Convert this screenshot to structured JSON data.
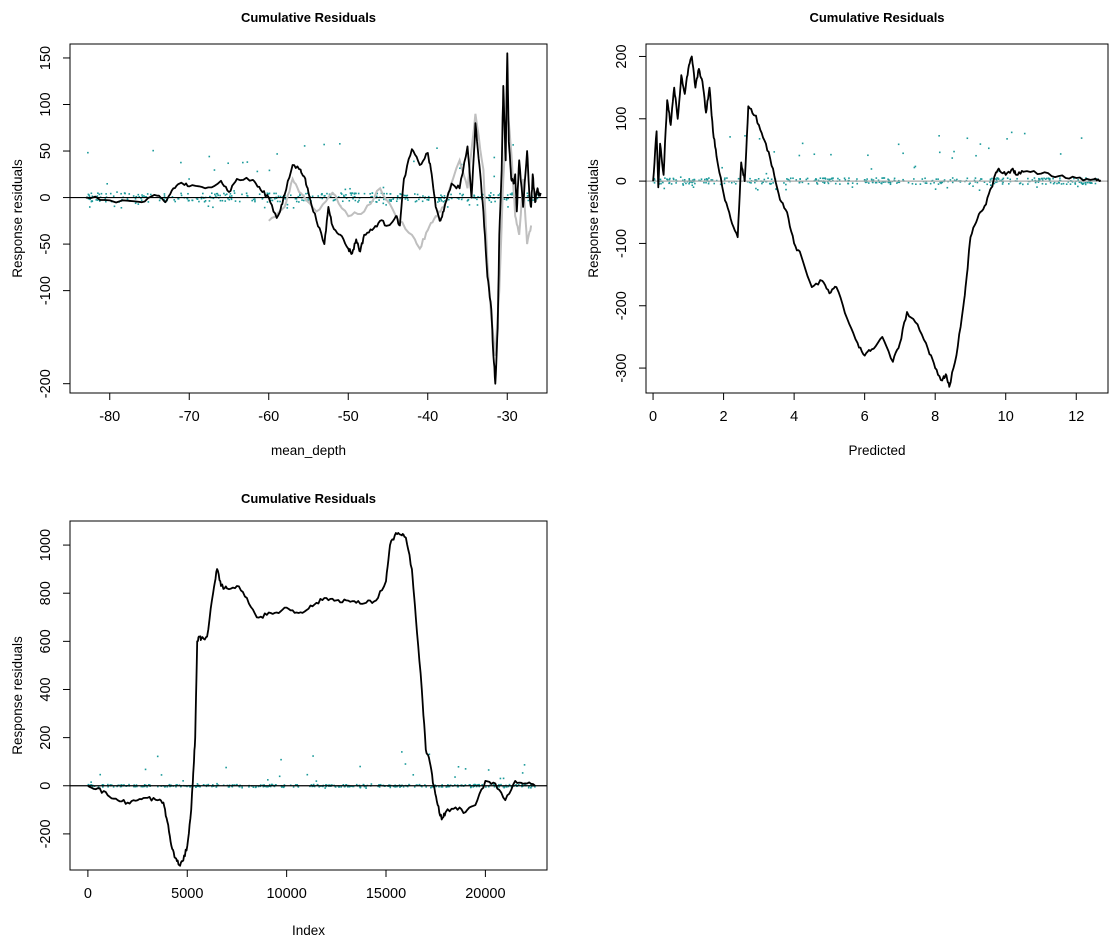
{
  "colors": {
    "main_line": "#000000",
    "band_line": "#bfbfbf",
    "points": "#1a9a9a",
    "zero_line": "#000000",
    "zero_line_alt": "#a8a8a8"
  },
  "chart_data": [
    {
      "type": "line",
      "title": "Cumulative Residuals",
      "xlabel": "mean_depth",
      "ylabel": "Response residuals",
      "xlim": [
        -85,
        -25
      ],
      "ylim": [
        -210,
        165
      ],
      "xticks": [
        -80,
        -70,
        -60,
        -50,
        -40,
        -30
      ],
      "yticks": [
        -200,
        -100,
        -50,
        0,
        50,
        100,
        150
      ],
      "zero_line": true,
      "series": [
        {
          "role": "cumulative",
          "x": [
            -83,
            -80,
            -76,
            -74,
            -73,
            -72,
            -71,
            -70,
            -68,
            -66,
            -65,
            -64,
            -62,
            -61,
            -60,
            -59,
            -58.5,
            -58,
            -57,
            -56,
            -55.5,
            -55,
            -54,
            -53,
            -52.5,
            -52,
            -51,
            -50,
            -49.5,
            -49,
            -48.5,
            -48,
            -47,
            -46,
            -45,
            -44,
            -43.5,
            -43,
            -42,
            -41,
            -40,
            -39.5,
            -39,
            -38.5,
            -38,
            -37,
            -36,
            -35,
            -34.5,
            -34,
            -33.5,
            -33,
            -32.5,
            -32,
            -31.8,
            -31.5,
            -31.2,
            -31,
            -30.7,
            -30.5,
            -30.2,
            -30,
            -29.8,
            -29.5,
            -29.2,
            -29,
            -28.8,
            -28.5,
            -28,
            -27.5,
            -27.2,
            -27,
            -26.8,
            -26.5,
            -26.2,
            -26,
            -25.8
          ],
          "y": [
            0,
            -3,
            -5,
            2,
            -5,
            10,
            16,
            12,
            10,
            18,
            6,
            20,
            19,
            8,
            0,
            -22,
            -12,
            3,
            35,
            30,
            22,
            5,
            -25,
            -50,
            -10,
            -30,
            -40,
            -55,
            -60,
            -45,
            -58,
            -40,
            -35,
            -25,
            -30,
            -20,
            -30,
            20,
            52,
            35,
            48,
            25,
            -10,
            -25,
            -15,
            15,
            10,
            55,
            0,
            80,
            35,
            -15,
            -85,
            -120,
            -160,
            -200,
            -140,
            -40,
            30,
            120,
            40,
            155,
            60,
            20,
            15,
            25,
            -15,
            40,
            -10,
            50,
            0,
            -10,
            25,
            -5,
            10,
            2,
            5
          ]
        },
        {
          "role": "simulated",
          "x": [
            -60,
            -58,
            -57,
            -56,
            -54,
            -52,
            -50,
            -48,
            -46,
            -44,
            -42,
            -41,
            -40,
            -39,
            -38,
            -36,
            -35,
            -34,
            -33,
            -32.5,
            -32,
            -31.5,
            -31,
            -30.5,
            -30,
            -29.5,
            -29,
            -28.5,
            -28,
            -27.5,
            -27
          ],
          "y": [
            -25,
            -10,
            20,
            5,
            -15,
            5,
            -20,
            -15,
            10,
            -20,
            -40,
            -55,
            -35,
            -20,
            -10,
            40,
            10,
            90,
            30,
            -70,
            -130,
            -170,
            -100,
            20,
            100,
            50,
            -20,
            -40,
            20,
            -50,
            -30
          ]
        },
        {
          "role": "residual_points",
          "y_extent": [
            -12,
            60
          ]
        }
      ]
    },
    {
      "type": "line",
      "title": "Cumulative Residuals",
      "xlabel": "Predicted",
      "ylabel": "Response residuals",
      "xlim": [
        -0.2,
        12.9
      ],
      "ylim": [
        -340,
        220
      ],
      "xticks": [
        0,
        2,
        4,
        6,
        8,
        10,
        12
      ],
      "yticks": [
        -300,
        -200,
        -100,
        0,
        100,
        200
      ],
      "zero_line": true,
      "series": [
        {
          "role": "cumulative",
          "x": [
            0,
            0.1,
            0.15,
            0.2,
            0.3,
            0.4,
            0.5,
            0.6,
            0.7,
            0.8,
            0.9,
            1.0,
            1.1,
            1.2,
            1.3,
            1.4,
            1.5,
            1.6,
            1.7,
            1.8,
            2.0,
            2.2,
            2.4,
            2.5,
            2.6,
            2.7,
            2.9,
            3.0,
            3.2,
            3.4,
            3.6,
            3.8,
            4.0,
            4.2,
            4.5,
            4.8,
            5.0,
            5.2,
            5.5,
            5.8,
            6.0,
            6.2,
            6.5,
            6.8,
            7.0,
            7.2,
            7.5,
            7.8,
            8.0,
            8.2,
            8.3,
            8.4,
            8.6,
            8.8,
            8.9,
            9.0,
            9.2,
            9.4,
            9.6,
            9.7,
            9.8,
            10.0,
            10.2,
            10.3,
            10.5,
            11.0,
            11.5,
            12.0,
            12.5,
            12.7
          ],
          "y": [
            0,
            80,
            -10,
            60,
            10,
            130,
            90,
            150,
            100,
            170,
            140,
            180,
            200,
            150,
            180,
            160,
            110,
            150,
            80,
            40,
            -20,
            -60,
            -90,
            30,
            0,
            120,
            105,
            90,
            60,
            20,
            -30,
            -50,
            -100,
            -120,
            -170,
            -160,
            -180,
            -170,
            -220,
            -260,
            -280,
            -270,
            -250,
            -290,
            -260,
            -210,
            -230,
            -270,
            -300,
            -320,
            -310,
            -330,
            -280,
            -200,
            -150,
            -90,
            -60,
            -40,
            -10,
            10,
            20,
            10,
            20,
            10,
            15,
            12,
            8,
            5,
            3,
            1
          ]
        },
        {
          "role": "residual_points",
          "y_extent": [
            -15,
            80
          ]
        }
      ]
    },
    {
      "type": "line",
      "title": "Cumulative Residuals",
      "xlabel": "Index",
      "ylabel": "Response residuals",
      "xlim": [
        -900,
        23100
      ],
      "ylim": [
        -350,
        1100
      ],
      "xticks": [
        0,
        5000,
        10000,
        15000,
        20000
      ],
      "yticks": [
        -200,
        0,
        200,
        400,
        600,
        800,
        1000
      ],
      "zero_line": true,
      "series": [
        {
          "role": "cumulative",
          "x": [
            0,
            500,
            1000,
            1500,
            2000,
            2500,
            3000,
            3500,
            3800,
            4000,
            4200,
            4400,
            4600,
            4800,
            5000,
            5200,
            5300,
            5400,
            5500,
            5600,
            5700,
            6000,
            6300,
            6500,
            6700,
            7000,
            7500,
            8000,
            8500,
            9000,
            9500,
            10000,
            10500,
            11000,
            11500,
            12000,
            12500,
            13000,
            13500,
            14000,
            14500,
            15000,
            15200,
            15500,
            15800,
            16000,
            16300,
            16500,
            16800,
            17000,
            17200,
            17400,
            17600,
            17800,
            18000,
            18500,
            19000,
            19500,
            20000,
            20500,
            21000,
            21500,
            22000,
            22500
          ],
          "y": [
            0,
            -10,
            -40,
            -60,
            -70,
            -60,
            -50,
            -60,
            -70,
            -150,
            -250,
            -300,
            -330,
            -310,
            -250,
            -100,
            50,
            200,
            600,
            620,
            610,
            620,
            800,
            900,
            830,
            820,
            830,
            780,
            700,
            710,
            720,
            740,
            720,
            730,
            760,
            780,
            770,
            770,
            760,
            760,
            770,
            850,
            1000,
            1050,
            1040,
            1030,
            900,
            700,
            400,
            150,
            100,
            0,
            -80,
            -140,
            -110,
            -90,
            -110,
            -80,
            20,
            10,
            -60,
            20,
            10,
            0
          ]
        },
        {
          "role": "residual_points",
          "y_extent": [
            -10,
            150
          ]
        }
      ]
    }
  ]
}
